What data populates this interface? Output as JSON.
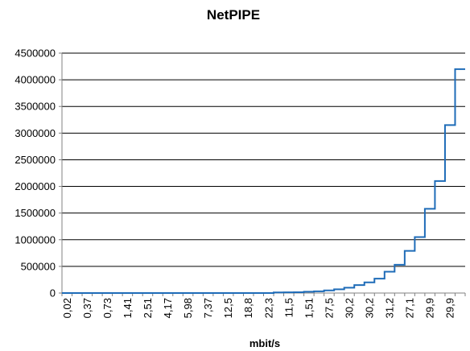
{
  "chart_data": {
    "type": "line",
    "title": "NetPIPE",
    "xlabel": "mbit/s",
    "ylabel": "",
    "ylim": [
      0,
      4500000
    ],
    "yticks": [
      0,
      500000,
      1000000,
      1500000,
      2000000,
      2500000,
      3000000,
      3500000,
      4000000,
      4500000
    ],
    "ytick_labels": [
      "0",
      "500000",
      "1000000",
      "1500000",
      "2000000",
      "2500000",
      "3000000",
      "3500000",
      "4000000",
      "4500000"
    ],
    "x_tick_labels": [
      "0,02",
      "0,37",
      "0,73",
      "1,41",
      "2,51",
      "4,17",
      "5,98",
      "7,37",
      "12,5",
      "18,8",
      "22,3",
      "11,5",
      "1,51",
      "27,5",
      "30,2",
      "30,2",
      "31,2",
      "27,1",
      "29,9",
      "29,9"
    ],
    "x_num_categories": 40,
    "grid": true,
    "legend": "none",
    "colors": {
      "line": "#1f6cb8",
      "grid": "#000000",
      "axis": "#808080"
    },
    "series": [
      {
        "values": [
          0,
          0,
          0,
          0,
          0,
          0,
          0,
          0,
          0,
          0,
          0,
          0,
          0,
          0,
          0,
          0,
          0,
          0,
          0,
          0,
          0,
          12000,
          14000,
          15000,
          24000,
          32000,
          50000,
          70000,
          100000,
          150000,
          200000,
          270000,
          400000,
          530000,
          790000,
          1050000,
          1580000,
          2100000,
          3150000,
          4200000
        ]
      }
    ]
  }
}
